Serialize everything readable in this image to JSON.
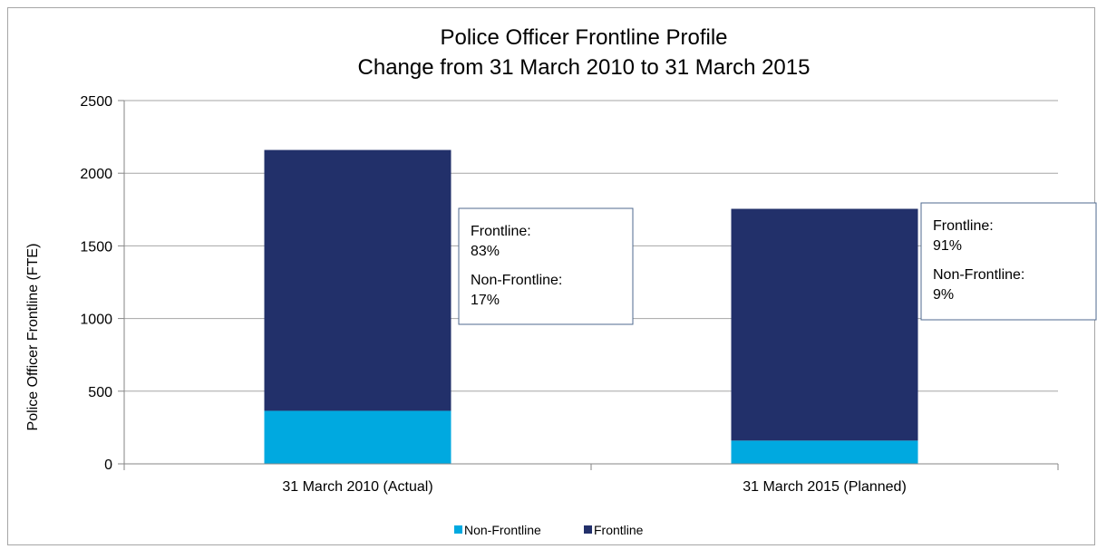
{
  "chart_data": {
    "type": "bar",
    "stacked": true,
    "title": [
      "Police Officer Frontline Profile",
      "Change from 31 March 2010 to 31 March 2015"
    ],
    "ylabel": "Police Officer Frontline (FTE)",
    "ylim": [
      0,
      2500
    ],
    "yticks": [
      "0",
      "500",
      "1000",
      "1500",
      "2000",
      "2500"
    ],
    "grid": true,
    "legend_position": "bottom",
    "categories": [
      "31 March 2010 (Actual)",
      "31 March 2015 (Planned)"
    ],
    "series": [
      {
        "name": "Non-Frontline",
        "color": "#00a9e0",
        "values": [
          365,
          160
        ]
      },
      {
        "name": "Frontline",
        "color": "#22306a",
        "values": [
          1795,
          1595
        ]
      }
    ],
    "annotations": [
      {
        "lines": [
          [
            "Frontline:",
            "83%"
          ],
          [
            "Non-Frontline:",
            "17%"
          ]
        ]
      },
      {
        "lines": [
          [
            "Frontline:",
            "91%"
          ],
          [
            "Non-Frontline:",
            "9%"
          ]
        ]
      }
    ]
  }
}
